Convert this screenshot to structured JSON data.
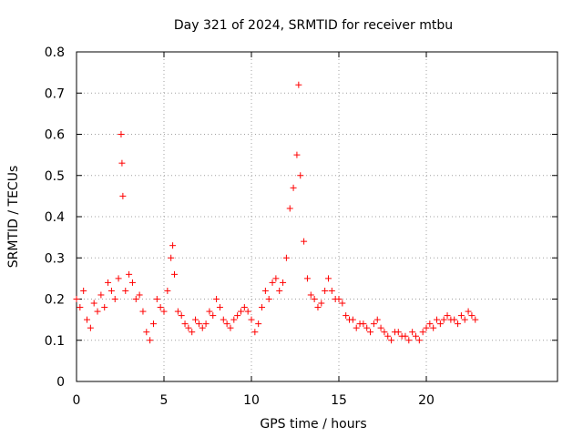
{
  "chart_data": {
    "type": "scatter",
    "title": "Day 321 of 2024, SRMTID for receiver mtbu",
    "xlabel": "GPS time / hours",
    "ylabel": "SRMTID / TECUs",
    "xlim": [
      0,
      27.5
    ],
    "ylim": [
      0,
      0.8
    ],
    "xticks": [
      0,
      5,
      10,
      15,
      20
    ],
    "xtick_labels": [
      "0",
      "5",
      "10",
      "15",
      "20"
    ],
    "yticks": [
      0,
      0.1,
      0.2,
      0.3,
      0.4,
      0.5,
      0.6,
      0.7,
      0.8
    ],
    "ytick_labels": [
      "0",
      "0.1",
      "0.2",
      "0.3",
      "0.4",
      "0.5",
      "0.6",
      "0.7",
      "0.8"
    ],
    "grid": true,
    "marker": "+",
    "color": "#ff0000",
    "series": [
      {
        "name": "SRMTID",
        "x": [
          0.0,
          0.2,
          0.4,
          0.6,
          0.8,
          1.0,
          1.2,
          1.4,
          1.6,
          1.8,
          2.0,
          2.2,
          2.4,
          2.55,
          2.6,
          2.65,
          2.8,
          3.0,
          3.2,
          3.4,
          3.6,
          3.8,
          4.0,
          4.2,
          4.4,
          4.6,
          4.8,
          5.0,
          5.2,
          5.4,
          5.5,
          5.6,
          5.8,
          6.0,
          6.2,
          6.4,
          6.6,
          6.8,
          7.0,
          7.2,
          7.4,
          7.6,
          7.8,
          8.0,
          8.2,
          8.4,
          8.6,
          8.8,
          9.0,
          9.2,
          9.4,
          9.6,
          9.8,
          10.0,
          10.2,
          10.4,
          10.6,
          10.8,
          11.0,
          11.2,
          11.4,
          11.6,
          11.8,
          12.0,
          12.2,
          12.4,
          12.6,
          12.7,
          12.8,
          13.0,
          13.2,
          13.4,
          13.6,
          13.8,
          14.0,
          14.2,
          14.4,
          14.6,
          14.8,
          15.0,
          15.2,
          15.4,
          15.6,
          15.8,
          16.0,
          16.2,
          16.4,
          16.6,
          16.8,
          17.0,
          17.2,
          17.4,
          17.6,
          17.8,
          18.0,
          18.2,
          18.4,
          18.6,
          18.8,
          19.0,
          19.2,
          19.4,
          19.6,
          19.8,
          20.0,
          20.2,
          20.4,
          20.6,
          20.8,
          21.0,
          21.2,
          21.4,
          21.6,
          21.8,
          22.0,
          22.2,
          22.4,
          22.6,
          22.8
        ],
        "y": [
          0.2,
          0.18,
          0.22,
          0.15,
          0.13,
          0.19,
          0.17,
          0.21,
          0.18,
          0.24,
          0.22,
          0.2,
          0.25,
          0.6,
          0.53,
          0.45,
          0.22,
          0.26,
          0.24,
          0.2,
          0.21,
          0.17,
          0.12,
          0.1,
          0.14,
          0.2,
          0.18,
          0.17,
          0.22,
          0.3,
          0.33,
          0.26,
          0.17,
          0.16,
          0.14,
          0.13,
          0.12,
          0.15,
          0.14,
          0.13,
          0.14,
          0.17,
          0.16,
          0.2,
          0.18,
          0.15,
          0.14,
          0.13,
          0.15,
          0.16,
          0.17,
          0.18,
          0.17,
          0.15,
          0.12,
          0.14,
          0.18,
          0.22,
          0.2,
          0.24,
          0.25,
          0.22,
          0.24,
          0.3,
          0.42,
          0.47,
          0.55,
          0.72,
          0.5,
          0.34,
          0.25,
          0.21,
          0.2,
          0.18,
          0.19,
          0.22,
          0.25,
          0.22,
          0.2,
          0.2,
          0.19,
          0.16,
          0.15,
          0.15,
          0.13,
          0.14,
          0.14,
          0.13,
          0.12,
          0.14,
          0.15,
          0.13,
          0.12,
          0.11,
          0.1,
          0.12,
          0.12,
          0.11,
          0.11,
          0.1,
          0.12,
          0.11,
          0.1,
          0.12,
          0.13,
          0.14,
          0.13,
          0.15,
          0.14,
          0.15,
          0.16,
          0.15,
          0.15,
          0.14,
          0.16,
          0.15,
          0.17,
          0.16,
          0.15
        ]
      }
    ]
  }
}
